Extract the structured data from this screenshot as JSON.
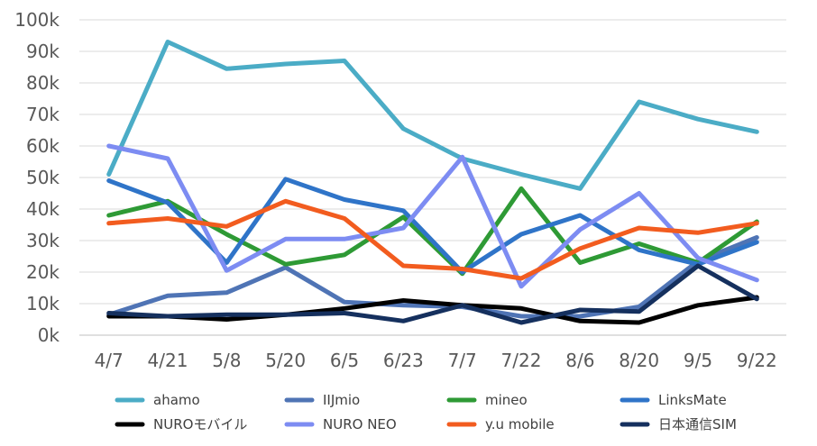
{
  "chart_data": {
    "type": "line",
    "title": "",
    "xlabel": "",
    "ylabel": "",
    "categories": [
      "4/7",
      "4/21",
      "5/8",
      "5/20",
      "6/5",
      "6/23",
      "7/7",
      "7/22",
      "8/6",
      "8/20",
      "9/5",
      "9/22"
    ],
    "ylim": [
      0,
      100000
    ],
    "yticks": [
      0,
      10000,
      20000,
      30000,
      40000,
      50000,
      60000,
      70000,
      80000,
      90000,
      100000
    ],
    "ytick_labels": [
      "0k",
      "10k",
      "20k",
      "30k",
      "40k",
      "50k",
      "60k",
      "70k",
      "80k",
      "90k",
      "100k"
    ],
    "grid": "horizontal",
    "legend_position": "bottom",
    "series": [
      {
        "name": "ahamo",
        "color": "#4bacc6",
        "values": [
          51000,
          93000,
          84500,
          86000,
          87000,
          65500,
          56000,
          51000,
          46500,
          74000,
          68500,
          64500
        ]
      },
      {
        "name": "IIJmio",
        "color": "#4f74b5",
        "values": [
          6500,
          12500,
          13500,
          21500,
          10500,
          9500,
          9000,
          6000,
          6000,
          9000,
          23500,
          31000
        ]
      },
      {
        "name": "mineo",
        "color": "#2e9a35",
        "values": [
          38000,
          42500,
          32000,
          22500,
          25500,
          37500,
          19500,
          46500,
          23000,
          29000,
          23000,
          36000
        ]
      },
      {
        "name": "LinksMate",
        "color": "#2f74c8",
        "values": [
          49000,
          42000,
          23000,
          49500,
          43000,
          39500,
          20000,
          32000,
          38000,
          27000,
          22500,
          29500
        ]
      },
      {
        "name": "NUROモバイル",
        "color": "#000000",
        "values": [
          6000,
          6000,
          5000,
          6500,
          8500,
          11000,
          9500,
          8500,
          4500,
          4000,
          9500,
          12000
        ]
      },
      {
        "name": "NURO NEO",
        "color": "#7d8cf2",
        "values": [
          60000,
          56000,
          20500,
          30500,
          30500,
          34000,
          56500,
          15500,
          33500,
          45000,
          24500,
          17500
        ]
      },
      {
        "name": "y.u mobile",
        "color": "#f25c1f",
        "values": [
          35500,
          37000,
          34500,
          42500,
          37000,
          22000,
          21000,
          18000,
          27500,
          34000,
          32500,
          35500
        ]
      },
      {
        "name": "日本通信SIM",
        "color": "#15305e",
        "values": [
          7000,
          6000,
          6500,
          6500,
          7000,
          4500,
          9500,
          4000,
          8000,
          7500,
          22000,
          11500
        ]
      }
    ]
  }
}
